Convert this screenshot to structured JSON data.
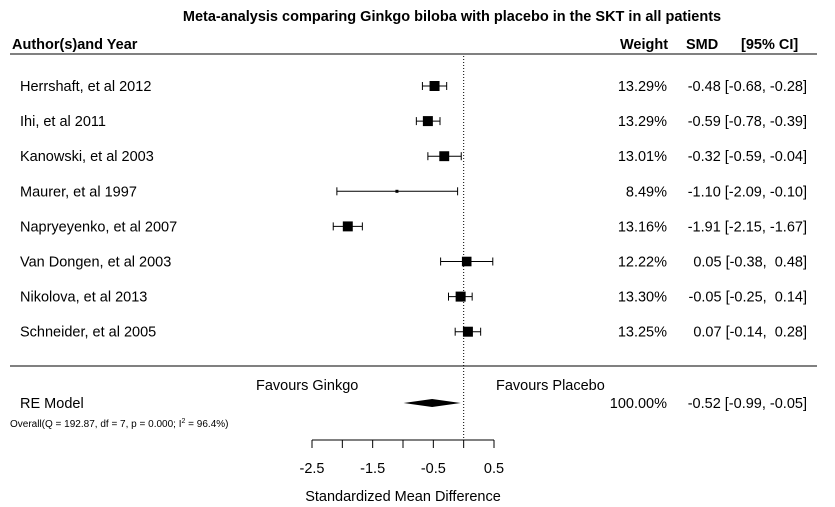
{
  "chart_data": {
    "type": "forest",
    "title": "Meta-analysis comparing Ginkgo biloba with placebo in the SKT in all patients",
    "headers": {
      "study": "Author(s)and Year",
      "weight": "Weight",
      "smd": "SMD",
      "ci": "[95% CI]"
    },
    "studies": [
      {
        "name": "Herrshaft, et al 2012",
        "weight": "13.29%",
        "est": -0.48,
        "lo": -0.68,
        "hi": -0.28,
        "text": "-0.48 [-0.68, -0.28]"
      },
      {
        "name": "Ihi, et al 2011",
        "weight": "13.29%",
        "est": -0.59,
        "lo": -0.78,
        "hi": -0.39,
        "text": "-0.59 [-0.78, -0.39]"
      },
      {
        "name": "Kanowski, et al 2003",
        "weight": "13.01%",
        "est": -0.32,
        "lo": -0.59,
        "hi": -0.04,
        "text": "-0.32 [-0.59, -0.04]"
      },
      {
        "name": "Maurer, et al 1997",
        "weight": "8.49%",
        "est": -1.1,
        "lo": -2.09,
        "hi": -0.1,
        "text": "-1.10 [-2.09, -0.10]"
      },
      {
        "name": "Napryeyenko, et al 2007",
        "weight": "13.16%",
        "est": -1.91,
        "lo": -2.15,
        "hi": -1.67,
        "text": "-1.91 [-2.15, -1.67]"
      },
      {
        "name": "Van Dongen, et al 2003",
        "weight": "12.22%",
        "est": 0.05,
        "lo": -0.38,
        "hi": 0.48,
        "text": "0.05 [-0.38,  0.48]"
      },
      {
        "name": "Nikolova, et al 2013",
        "weight": "13.30%",
        "est": -0.05,
        "lo": -0.25,
        "hi": 0.14,
        "text": "-0.05 [-0.25,  0.14]"
      },
      {
        "name": "Schneider, et al 2005",
        "weight": "13.25%",
        "est": 0.07,
        "lo": -0.14,
        "hi": 0.28,
        "text": "0.07 [-0.14,  0.28]"
      }
    ],
    "summary": {
      "name": "RE Model",
      "weight": "100.00%",
      "est": -0.52,
      "lo": -0.99,
      "hi": -0.05,
      "text": "-0.52 [-0.99, -0.05]",
      "heterogeneity_prefix": "Overall(Q = 192.87, df = 7, p = 0.000; I",
      "heterogeneity_sup": "2",
      "heterogeneity_suffix": " = 96.4%)"
    },
    "favours_left": "Favours Ginkgo",
    "favours_right": "Favours Placebo",
    "xlabel": "Standardized Mean Difference",
    "xlim": [
      -2.5,
      0.5
    ],
    "xticks": [
      -2.5,
      -2.0,
      -1.5,
      -1.0,
      -0.5,
      0.0,
      0.5
    ],
    "xtick_labels": [
      "-2.5",
      "",
      "-1.5",
      "",
      "-0.5",
      "",
      "0.5"
    ],
    "reference_line": 0
  }
}
